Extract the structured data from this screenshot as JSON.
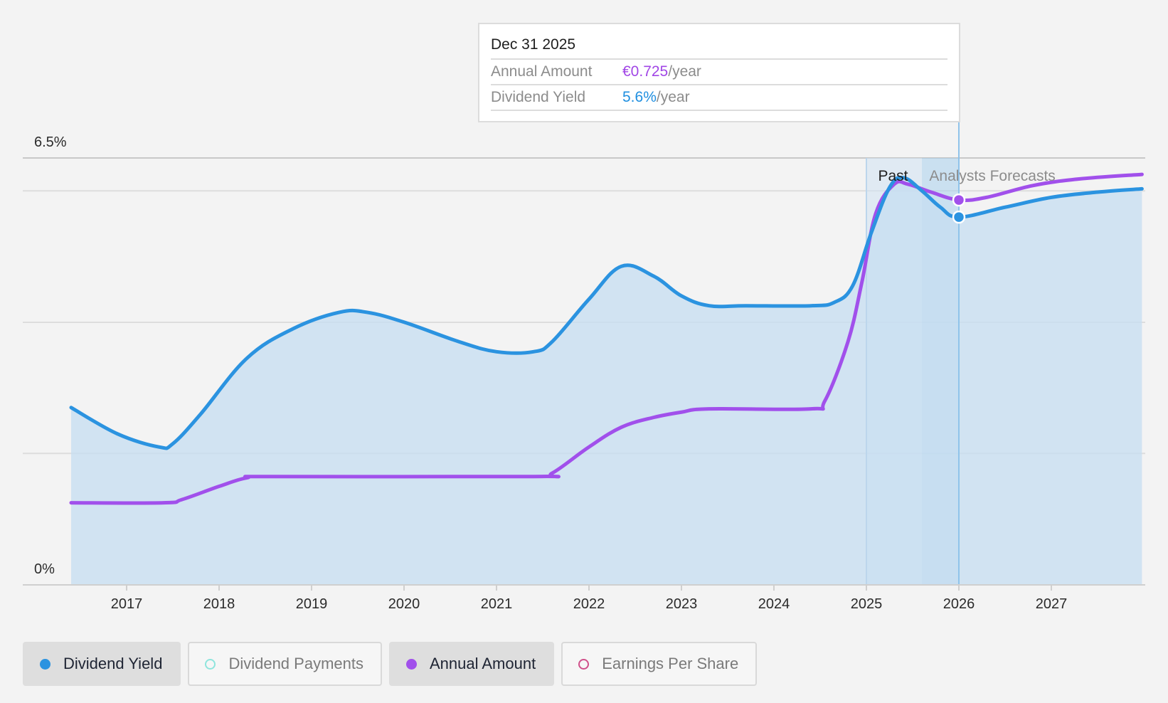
{
  "tooltip": {
    "date": "Dec 31 2025",
    "rows": [
      {
        "label": "Annual Amount",
        "value": "€0.725",
        "unit": "/year"
      },
      {
        "label": "Dividend Yield",
        "value": "5.6%",
        "unit": "/year"
      }
    ]
  },
  "regions": {
    "past": "Past",
    "forecast": "Analysts Forecasts"
  },
  "legend": [
    {
      "label": "Dividend Yield",
      "color": "#2b93e0",
      "filled": true,
      "active": true
    },
    {
      "label": "Dividend Payments",
      "color": "#8fe5dd",
      "filled": false,
      "active": false
    },
    {
      "label": "Annual Amount",
      "color": "#a150eb",
      "filled": true,
      "active": true
    },
    {
      "label": "Earnings Per Share",
      "color": "#d0508a",
      "filled": false,
      "active": false
    }
  ],
  "chart_data": {
    "type": "area",
    "x_ticks": [
      "2017",
      "2018",
      "2019",
      "2020",
      "2021",
      "2022",
      "2023",
      "2024",
      "2025",
      "2026",
      "2027"
    ],
    "y_tick_labels": [
      "0%",
      "6.5%"
    ],
    "ylim": [
      0,
      6.5
    ],
    "grid": true,
    "highlight_date": 2026.0,
    "past_end": 2025.6,
    "series": [
      {
        "name": "Dividend Yield",
        "color": "#2b93e0",
        "points": [
          [
            2016.4,
            2.7
          ],
          [
            2016.9,
            2.3
          ],
          [
            2017.35,
            2.1
          ],
          [
            2017.5,
            2.15
          ],
          [
            2017.8,
            2.6
          ],
          [
            2018.3,
            3.45
          ],
          [
            2018.8,
            3.9
          ],
          [
            2019.3,
            4.15
          ],
          [
            2019.6,
            4.15
          ],
          [
            2020.0,
            4.0
          ],
          [
            2020.6,
            3.7
          ],
          [
            2021.0,
            3.55
          ],
          [
            2021.4,
            3.55
          ],
          [
            2021.6,
            3.7
          ],
          [
            2022.0,
            4.35
          ],
          [
            2022.35,
            4.85
          ],
          [
            2022.7,
            4.7
          ],
          [
            2023.0,
            4.4
          ],
          [
            2023.3,
            4.25
          ],
          [
            2023.7,
            4.25
          ],
          [
            2024.4,
            4.25
          ],
          [
            2024.65,
            4.3
          ],
          [
            2024.85,
            4.55
          ],
          [
            2025.05,
            5.35
          ],
          [
            2025.25,
            6.05
          ],
          [
            2025.4,
            6.2
          ],
          [
            2025.6,
            6.0
          ],
          [
            2025.8,
            5.75
          ],
          [
            2026.0,
            5.6
          ],
          [
            2026.5,
            5.75
          ],
          [
            2027.0,
            5.9
          ],
          [
            2027.5,
            5.98
          ],
          [
            2027.98,
            6.03
          ]
        ]
      },
      {
        "name": "Annual Amount",
        "color": "#a150eb",
        "points": [
          [
            2016.4,
            1.25
          ],
          [
            2017.4,
            1.25
          ],
          [
            2017.6,
            1.3
          ],
          [
            2018.0,
            1.5
          ],
          [
            2018.3,
            1.63
          ],
          [
            2018.6,
            1.65
          ],
          [
            2021.4,
            1.65
          ],
          [
            2021.6,
            1.7
          ],
          [
            2022.0,
            2.1
          ],
          [
            2022.35,
            2.4
          ],
          [
            2022.7,
            2.55
          ],
          [
            2023.0,
            2.63
          ],
          [
            2023.3,
            2.68
          ],
          [
            2024.4,
            2.68
          ],
          [
            2024.55,
            2.8
          ],
          [
            2024.8,
            3.7
          ],
          [
            2024.95,
            4.6
          ],
          [
            2025.1,
            5.65
          ],
          [
            2025.3,
            6.1
          ],
          [
            2025.45,
            6.1
          ],
          [
            2025.7,
            5.98
          ],
          [
            2026.0,
            5.86
          ],
          [
            2026.3,
            5.9
          ],
          [
            2026.8,
            6.08
          ],
          [
            2027.3,
            6.18
          ],
          [
            2027.98,
            6.25
          ]
        ]
      }
    ]
  }
}
